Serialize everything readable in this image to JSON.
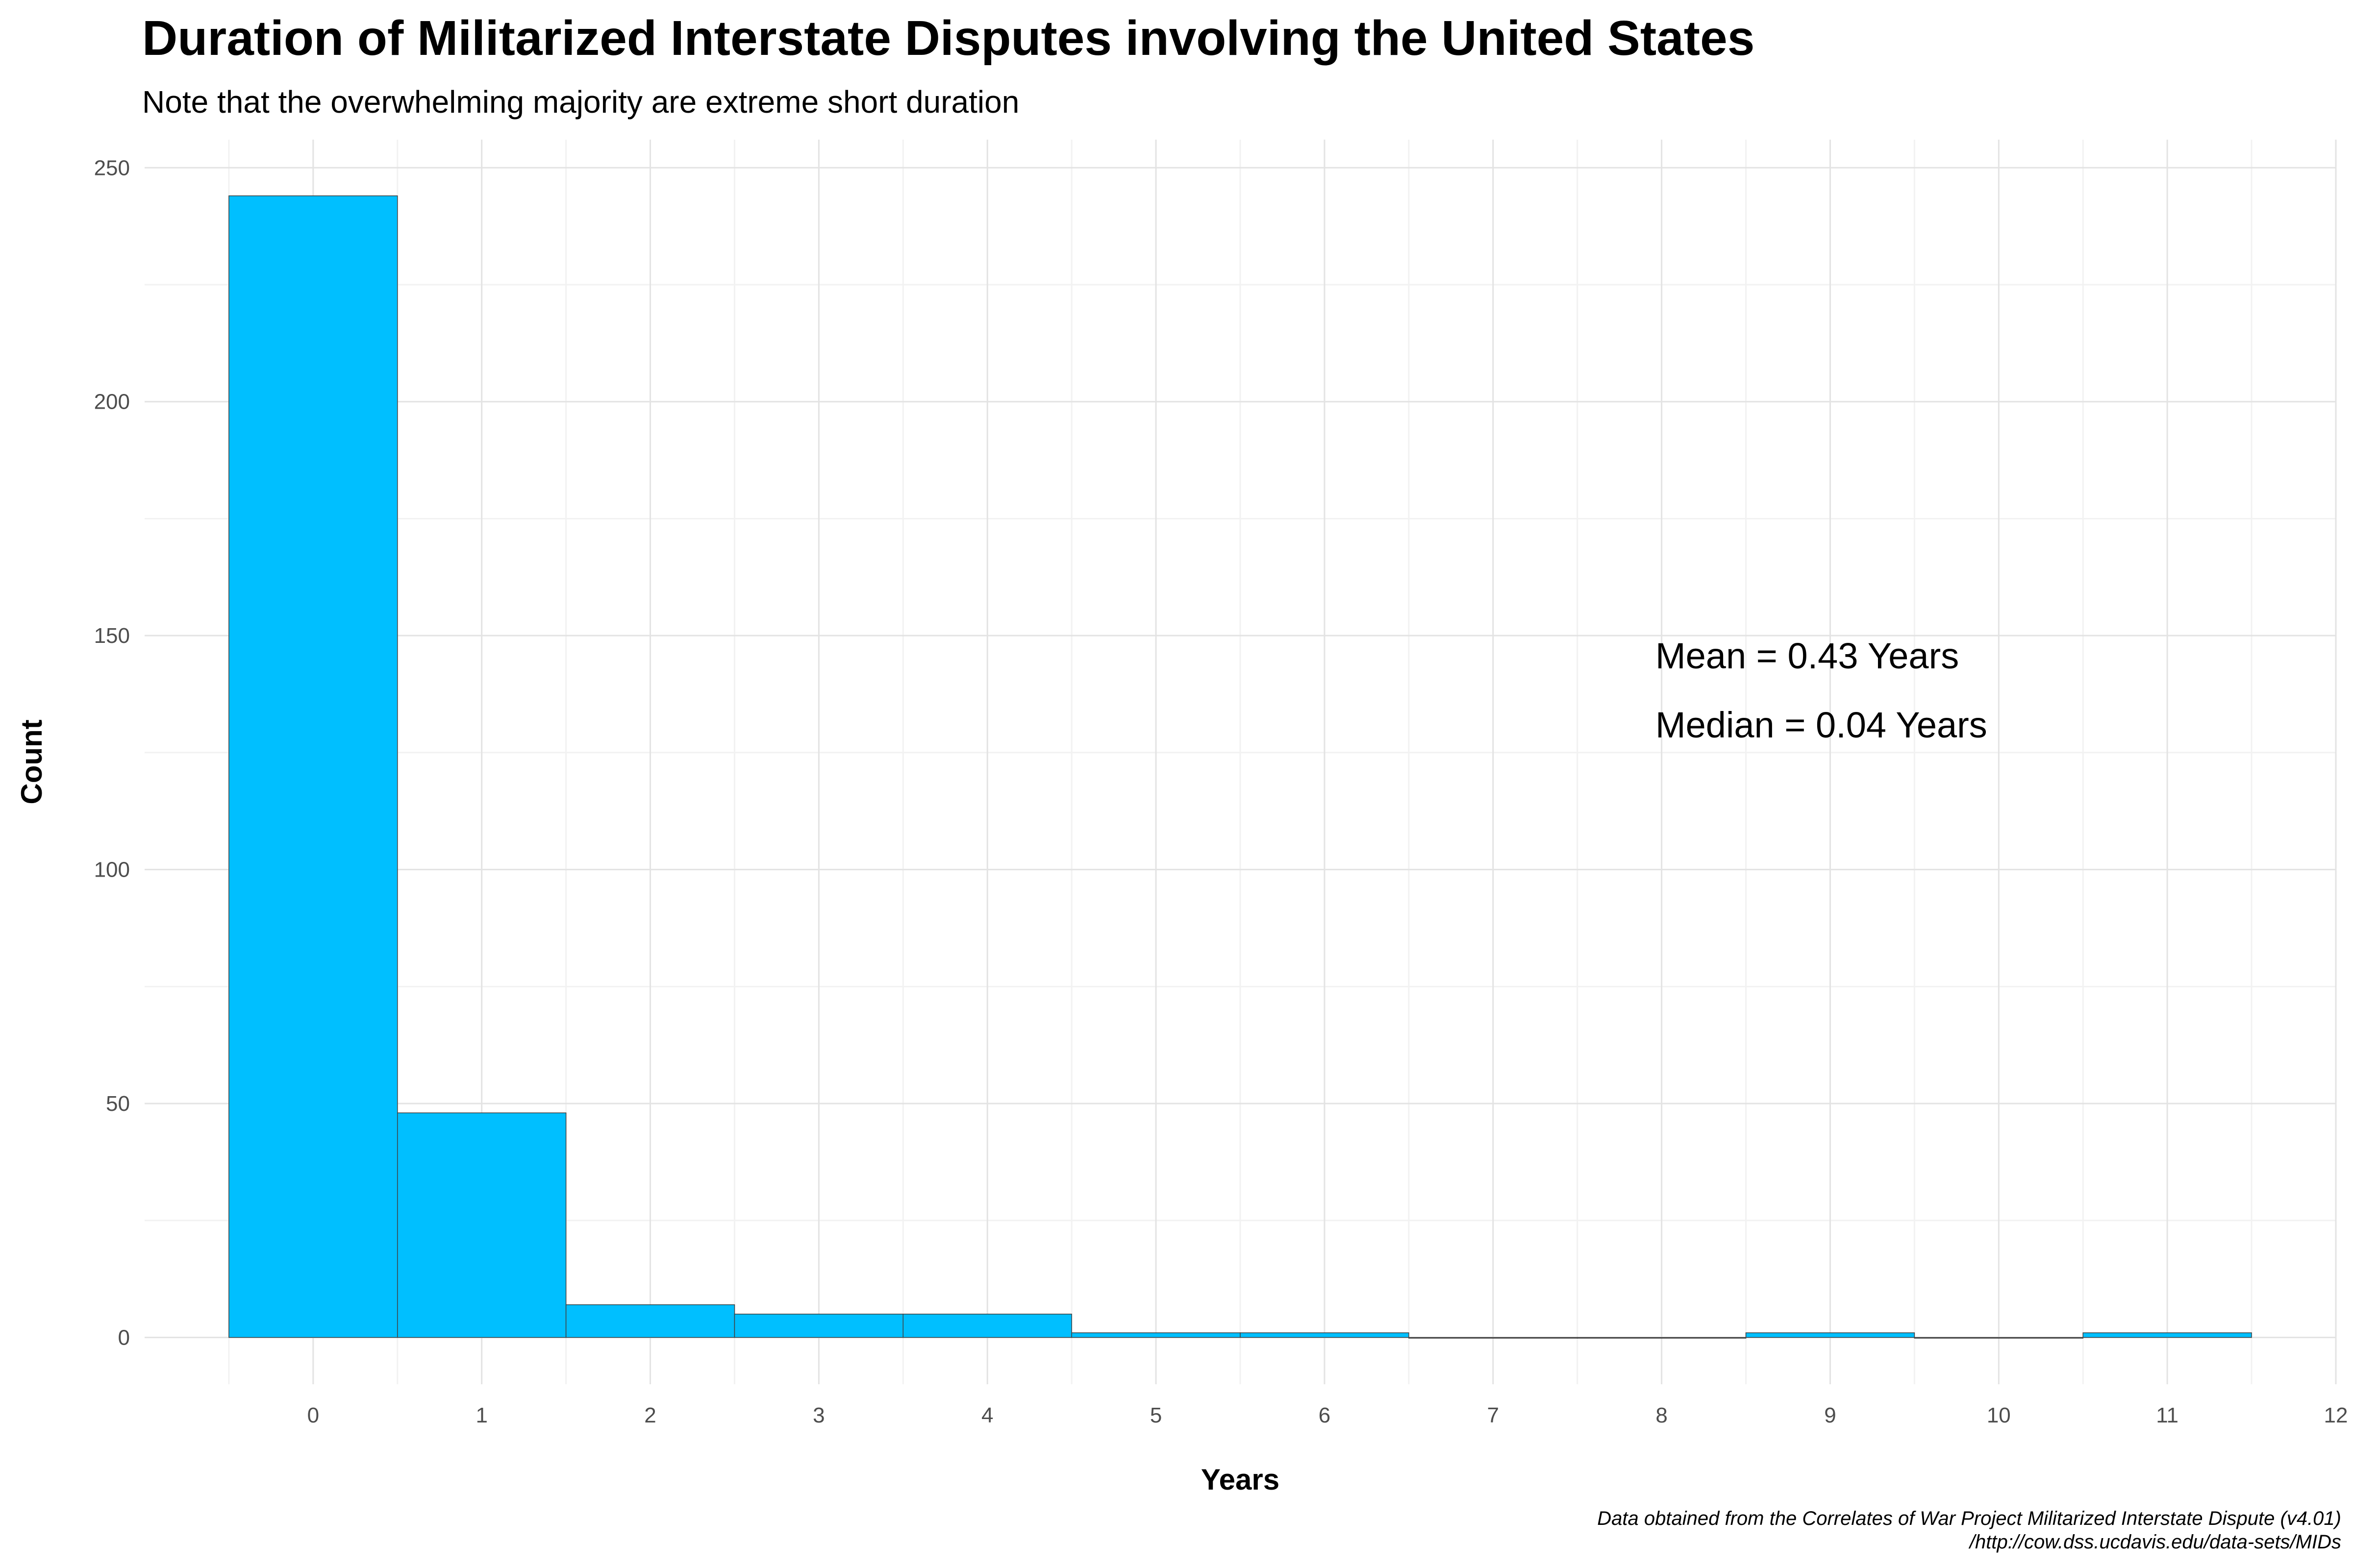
{
  "header": {
    "title": "Duration of Militarized Interstate Disputes involving the United States",
    "subtitle": "Note that the overwhelming majority are extreme short duration"
  },
  "caption": {
    "line1": "Data obtained from the Correlates of War Project Militarized Interstate Dispute (v4.01)",
    "line2": "/http://cow.dss.ucdavis.edu/data-sets/MIDs"
  },
  "annotations": {
    "mean": "Mean = 0.43 Years",
    "median": "Median = 0.04 Years"
  },
  "colors": {
    "bar_fill": "#00BFFF",
    "bar_stroke": "#404040",
    "grid_major": "#e3e3e3",
    "grid_minor": "#f2f2f2"
  },
  "chart_data": {
    "type": "bar",
    "title": "Duration of Militarized Interstate Disputes involving the United States",
    "subtitle": "Note that the overwhelming majority are extreme short duration",
    "xlabel": "Years",
    "ylabel": "Count",
    "categories": [
      0,
      1,
      2,
      3,
      4,
      5,
      6,
      7,
      8,
      9,
      10,
      11
    ],
    "values": [
      244,
      48,
      7,
      5,
      5,
      1,
      1,
      0,
      0,
      1,
      0,
      1
    ],
    "bin_width": 1,
    "xlim": [
      -1,
      12
    ],
    "ylim": [
      -10,
      256
    ],
    "x_ticks": [
      0,
      1,
      2,
      3,
      4,
      5,
      6,
      7,
      8,
      9,
      10,
      11,
      12
    ],
    "y_ticks": [
      0,
      50,
      100,
      150,
      200,
      250
    ],
    "grid": true,
    "legend": "none",
    "annotations": [
      {
        "text": "Mean = 0.43 Years",
        "x": 8,
        "y": 144
      },
      {
        "text": "Median = 0.04 Years",
        "x": 8,
        "y": 129
      }
    ]
  }
}
